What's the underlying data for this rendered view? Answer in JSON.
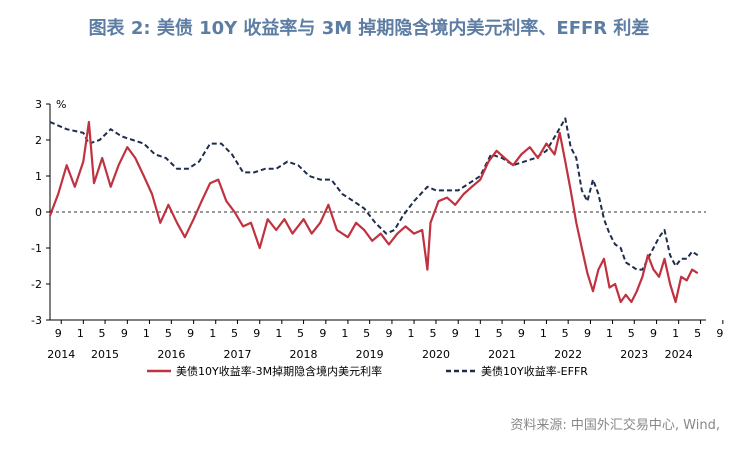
{
  "title": "图表 2:  美债 10Y 收益率与 3M 掉期隐含境内美元利率、EFFR 利差",
  "source": "资料来源:  中国外汇交易中心, Wind,",
  "chart_data": {
    "type": "line",
    "unit": "%",
    "ylim": [
      -3,
      3
    ],
    "yticks": [
      3,
      2,
      1,
      0,
      -1,
      -2,
      -3
    ],
    "xlim": [
      "2014-07-01",
      "2024-05-31"
    ],
    "month_ticks": [
      "9",
      "1",
      "5",
      "9",
      "1",
      "5",
      "9",
      "1",
      "5",
      "9",
      "1",
      "5",
      "9",
      "1",
      "5",
      "9",
      "1",
      "5",
      "9",
      "1",
      "5",
      "9",
      "1",
      "5",
      "9",
      "1",
      "5",
      "9",
      "1",
      "5",
      "9",
      "1",
      "5",
      "9",
      "1",
      "5",
      "9",
      "1",
      "5"
    ],
    "year_labels": [
      {
        "label": "2014",
        "date": "2014-09-01"
      },
      {
        "label": "2015",
        "date": "2015-05-01"
      },
      {
        "label": "2016",
        "date": "2016-05-01"
      },
      {
        "label": "2017",
        "date": "2017-05-01"
      },
      {
        "label": "2018",
        "date": "2018-05-01"
      },
      {
        "label": "2019",
        "date": "2019-05-01"
      },
      {
        "label": "2020",
        "date": "2020-05-01"
      },
      {
        "label": "2021",
        "date": "2021-05-01"
      },
      {
        "label": "2022",
        "date": "2022-05-01"
      },
      {
        "label": "2023",
        "date": "2023-05-01"
      },
      {
        "label": "2024",
        "date": "2024-01-01"
      }
    ],
    "zero_line": "dashed",
    "series": [
      {
        "name": "美债10Y收益率-3M掉期隐含境内美元利率",
        "color": "#c0323f",
        "style": "solid",
        "points": [
          [
            "2014-07-01",
            -0.1
          ],
          [
            "2014-08-15",
            0.5
          ],
          [
            "2014-10-01",
            1.3
          ],
          [
            "2014-11-15",
            0.7
          ],
          [
            "2015-01-01",
            1.4
          ],
          [
            "2015-02-01",
            2.5
          ],
          [
            "2015-03-01",
            0.8
          ],
          [
            "2015-04-15",
            1.5
          ],
          [
            "2015-06-01",
            0.7
          ],
          [
            "2015-07-15",
            1.3
          ],
          [
            "2015-09-01",
            1.8
          ],
          [
            "2015-10-15",
            1.5
          ],
          [
            "2015-12-01",
            1.0
          ],
          [
            "2016-01-15",
            0.5
          ],
          [
            "2016-03-01",
            -0.3
          ],
          [
            "2016-04-15",
            0.2
          ],
          [
            "2016-06-01",
            -0.3
          ],
          [
            "2016-07-15",
            -0.7
          ],
          [
            "2016-09-01",
            -0.2
          ],
          [
            "2016-10-15",
            0.3
          ],
          [
            "2016-12-01",
            0.8
          ],
          [
            "2017-01-15",
            0.9
          ],
          [
            "2017-03-01",
            0.3
          ],
          [
            "2017-04-15",
            0.0
          ],
          [
            "2017-06-01",
            -0.4
          ],
          [
            "2017-07-15",
            -0.3
          ],
          [
            "2017-09-01",
            -1.0
          ],
          [
            "2017-10-15",
            -0.2
          ],
          [
            "2017-12-01",
            -0.5
          ],
          [
            "2018-01-15",
            -0.2
          ],
          [
            "2018-03-01",
            -0.6
          ],
          [
            "2018-05-01",
            -0.2
          ],
          [
            "2018-06-15",
            -0.6
          ],
          [
            "2018-08-01",
            -0.3
          ],
          [
            "2018-09-15",
            0.2
          ],
          [
            "2018-11-01",
            -0.5
          ],
          [
            "2019-01-01",
            -0.7
          ],
          [
            "2019-02-15",
            -0.3
          ],
          [
            "2019-04-01",
            -0.5
          ],
          [
            "2019-05-15",
            -0.8
          ],
          [
            "2019-07-01",
            -0.6
          ],
          [
            "2019-08-15",
            -0.9
          ],
          [
            "2019-10-01",
            -0.6
          ],
          [
            "2019-11-15",
            -0.4
          ],
          [
            "2020-01-01",
            -0.6
          ],
          [
            "2020-02-15",
            -0.5
          ],
          [
            "2020-03-15",
            -1.6
          ],
          [
            "2020-04-01",
            -0.3
          ],
          [
            "2020-05-15",
            0.3
          ],
          [
            "2020-07-01",
            0.4
          ],
          [
            "2020-08-15",
            0.2
          ],
          [
            "2020-10-01",
            0.5
          ],
          [
            "2020-11-15",
            0.7
          ],
          [
            "2021-01-01",
            0.9
          ],
          [
            "2021-02-15",
            1.4
          ],
          [
            "2021-04-01",
            1.7
          ],
          [
            "2021-05-15",
            1.5
          ],
          [
            "2021-07-01",
            1.3
          ],
          [
            "2021-08-15",
            1.6
          ],
          [
            "2021-10-01",
            1.8
          ],
          [
            "2021-11-15",
            1.5
          ],
          [
            "2022-01-01",
            1.9
          ],
          [
            "2022-02-15",
            1.6
          ],
          [
            "2022-03-15",
            2.2
          ],
          [
            "2022-04-15",
            1.4
          ],
          [
            "2022-05-15",
            0.6
          ],
          [
            "2022-06-15",
            -0.3
          ],
          [
            "2022-07-15",
            -1.0
          ],
          [
            "2022-08-15",
            -1.7
          ],
          [
            "2022-09-15",
            -2.2
          ],
          [
            "2022-10-15",
            -1.6
          ],
          [
            "2022-11-15",
            -1.3
          ],
          [
            "2022-12-15",
            -2.1
          ],
          [
            "2023-01-15",
            -2.0
          ],
          [
            "2023-02-15",
            -2.5
          ],
          [
            "2023-03-15",
            -2.3
          ],
          [
            "2023-04-15",
            -2.5
          ],
          [
            "2023-05-15",
            -2.2
          ],
          [
            "2023-06-15",
            -1.8
          ],
          [
            "2023-07-15",
            -1.2
          ],
          [
            "2023-08-15",
            -1.6
          ],
          [
            "2023-09-15",
            -1.8
          ],
          [
            "2023-10-15",
            -1.3
          ],
          [
            "2023-11-15",
            -2.0
          ],
          [
            "2023-12-15",
            -2.5
          ],
          [
            "2024-01-15",
            -1.8
          ],
          [
            "2024-02-15",
            -1.9
          ],
          [
            "2024-03-15",
            -1.6
          ],
          [
            "2024-04-15",
            -1.7
          ]
        ]
      },
      {
        "name": "美债10Y收益率-EFFR",
        "color": "#1f2d4d",
        "style": "dashed",
        "points": [
          [
            "2014-07-01",
            2.5
          ],
          [
            "2014-10-01",
            2.3
          ],
          [
            "2015-01-01",
            2.2
          ],
          [
            "2015-02-01",
            1.9
          ],
          [
            "2015-04-01",
            2.0
          ],
          [
            "2015-06-01",
            2.3
          ],
          [
            "2015-08-01",
            2.1
          ],
          [
            "2015-10-01",
            2.0
          ],
          [
            "2015-12-01",
            1.9
          ],
          [
            "2016-02-01",
            1.6
          ],
          [
            "2016-04-01",
            1.5
          ],
          [
            "2016-06-01",
            1.2
          ],
          [
            "2016-08-01",
            1.2
          ],
          [
            "2016-10-01",
            1.4
          ],
          [
            "2016-12-01",
            1.9
          ],
          [
            "2017-02-01",
            1.9
          ],
          [
            "2017-04-01",
            1.6
          ],
          [
            "2017-06-01",
            1.1
          ],
          [
            "2017-08-01",
            1.1
          ],
          [
            "2017-10-01",
            1.2
          ],
          [
            "2017-12-01",
            1.2
          ],
          [
            "2018-02-01",
            1.4
          ],
          [
            "2018-04-01",
            1.3
          ],
          [
            "2018-06-01",
            1.0
          ],
          [
            "2018-08-01",
            0.9
          ],
          [
            "2018-10-01",
            0.9
          ],
          [
            "2018-12-01",
            0.5
          ],
          [
            "2019-02-01",
            0.3
          ],
          [
            "2019-04-01",
            0.1
          ],
          [
            "2019-06-01",
            -0.3
          ],
          [
            "2019-08-01",
            -0.6
          ],
          [
            "2019-09-15",
            -0.5
          ],
          [
            "2019-11-01",
            -0.1
          ],
          [
            "2020-01-01",
            0.3
          ],
          [
            "2020-03-15",
            0.7
          ],
          [
            "2020-05-01",
            0.6
          ],
          [
            "2020-07-01",
            0.6
          ],
          [
            "2020-09-01",
            0.6
          ],
          [
            "2020-11-01",
            0.8
          ],
          [
            "2021-01-01",
            1.0
          ],
          [
            "2021-03-01",
            1.6
          ],
          [
            "2021-05-01",
            1.5
          ],
          [
            "2021-07-01",
            1.3
          ],
          [
            "2021-09-01",
            1.4
          ],
          [
            "2021-11-01",
            1.5
          ],
          [
            "2022-01-01",
            1.7
          ],
          [
            "2022-03-01",
            2.2
          ],
          [
            "2022-04-15",
            2.6
          ],
          [
            "2022-05-15",
            1.8
          ],
          [
            "2022-06-15",
            1.5
          ],
          [
            "2022-07-15",
            0.6
          ],
          [
            "2022-08-15",
            0.3
          ],
          [
            "2022-09-15",
            0.9
          ],
          [
            "2022-10-15",
            0.5
          ],
          [
            "2022-11-15",
            -0.2
          ],
          [
            "2022-12-15",
            -0.6
          ],
          [
            "2023-01-15",
            -0.9
          ],
          [
            "2023-02-15",
            -1.0
          ],
          [
            "2023-03-15",
            -1.4
          ],
          [
            "2023-04-15",
            -1.5
          ],
          [
            "2023-05-15",
            -1.6
          ],
          [
            "2023-06-15",
            -1.6
          ],
          [
            "2023-07-15",
            -1.3
          ],
          [
            "2023-08-15",
            -1.0
          ],
          [
            "2023-09-15",
            -0.7
          ],
          [
            "2023-10-15",
            -0.5
          ],
          [
            "2023-11-15",
            -1.2
          ],
          [
            "2023-12-15",
            -1.5
          ],
          [
            "2024-01-15",
            -1.3
          ],
          [
            "2024-02-15",
            -1.3
          ],
          [
            "2024-03-15",
            -1.1
          ],
          [
            "2024-04-15",
            -1.2
          ]
        ]
      }
    ],
    "legend_position": "bottom"
  }
}
